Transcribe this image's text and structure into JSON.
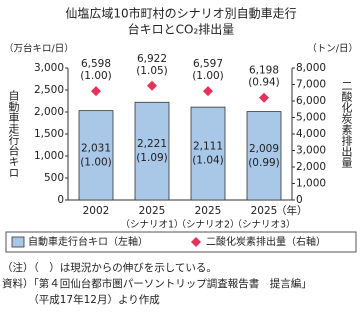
{
  "chart_data": {
    "type": "bar_line",
    "title": [
      "仙塩広域10市町村のシナリオ別自動車走行",
      "台キロとCO₂排出量"
    ],
    "y_unit": "（万台キロ/日）",
    "y2_unit": "（トン/日）",
    "ylabel": "自動車走行台キロ",
    "y2label": "二酸化炭素排出量",
    "xlabel": "（年）",
    "categories": [
      "2002",
      "2025",
      "2025",
      "2025"
    ],
    "category_notes": [
      null,
      "（シナリオ1）",
      "（シナリオ2）",
      "（シナリオ3）"
    ],
    "series": [
      {
        "name": "自動車走行台キロ（左軸）",
        "type": "bar",
        "color": "#a9c8e8",
        "values": [
          2031,
          2221,
          2111,
          2009
        ],
        "value_labels": [
          "2,031",
          "2,221",
          "2,111",
          "2,009"
        ],
        "ratio_labels": [
          "(1.00)",
          "(1.09)",
          "(1.04)",
          "(0.99)"
        ]
      },
      {
        "name": "二酸化炭素排出量（右軸）",
        "type": "scatter",
        "axis": "y2",
        "color": "#e8315a",
        "values": [
          6598,
          6922,
          6597,
          6198
        ],
        "value_labels": [
          "6,598",
          "6,922",
          "6,597",
          "6,198"
        ],
        "ratio_labels": [
          "(1.00)",
          "(1.05)",
          "(1.00)",
          "(0.94)"
        ]
      }
    ],
    "ylim": [
      0,
      3000
    ],
    "yticks": [
      0,
      {
        "value": 500,
        "label": "500"
      },
      {
        "value": 1000,
        "label": "1,000"
      },
      {
        "value": 1500,
        "label": "1,500"
      },
      {
        "value": 2000,
        "label": "2,000"
      },
      {
        "value": 2500,
        "label": "2,500"
      },
      {
        "value": 3000,
        "label": "3,000"
      }
    ],
    "y2lim": [
      0,
      8000
    ],
    "y2ticks": [
      0,
      {
        "value": 1000,
        "label": "1,000"
      },
      {
        "value": 2000,
        "label": "2,000"
      },
      {
        "value": 3000,
        "label": "3,000"
      },
      {
        "value": 4000,
        "label": "4,000"
      },
      {
        "value": 5000,
        "label": "5,000"
      },
      {
        "value": 6000,
        "label": "6,000"
      },
      {
        "value": 7000,
        "label": "7,000"
      },
      {
        "value": 8000,
        "label": "8,000"
      }
    ],
    "notes": [
      "（注）（　）は現況からの伸びを示している。",
      "資料）「第４回仙台都市圏パーソントリップ調査報告書　提言編」",
      "　　　（平成17年12月）より作成"
    ]
  }
}
